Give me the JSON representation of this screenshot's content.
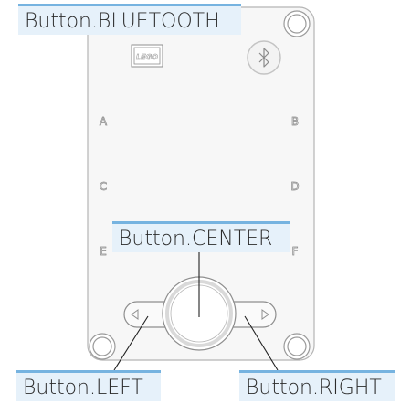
{
  "hub": {
    "logo_text": "LEGO",
    "ports": [
      {
        "id": "A",
        "label": "A"
      },
      {
        "id": "B",
        "label": "B"
      },
      {
        "id": "C",
        "label": "C"
      },
      {
        "id": "D",
        "label": "D"
      },
      {
        "id": "E",
        "label": "E"
      },
      {
        "id": "F",
        "label": "F"
      }
    ]
  },
  "callouts": {
    "bluetooth": "Button.BLUETOOTH",
    "center": "Button.CENTER",
    "left": "Button.LEFT",
    "right": "Button.RIGHT"
  },
  "colors": {
    "callout_bg": "#e6f1fa",
    "callout_border": "#76b3e0",
    "hub_outline": "#b5b5b5",
    "hub_fill": "#f7f7f7"
  },
  "icons": {
    "bluetooth": "bluetooth-icon",
    "left_arrow": "triangle-left-icon",
    "right_arrow": "triangle-right-icon"
  }
}
